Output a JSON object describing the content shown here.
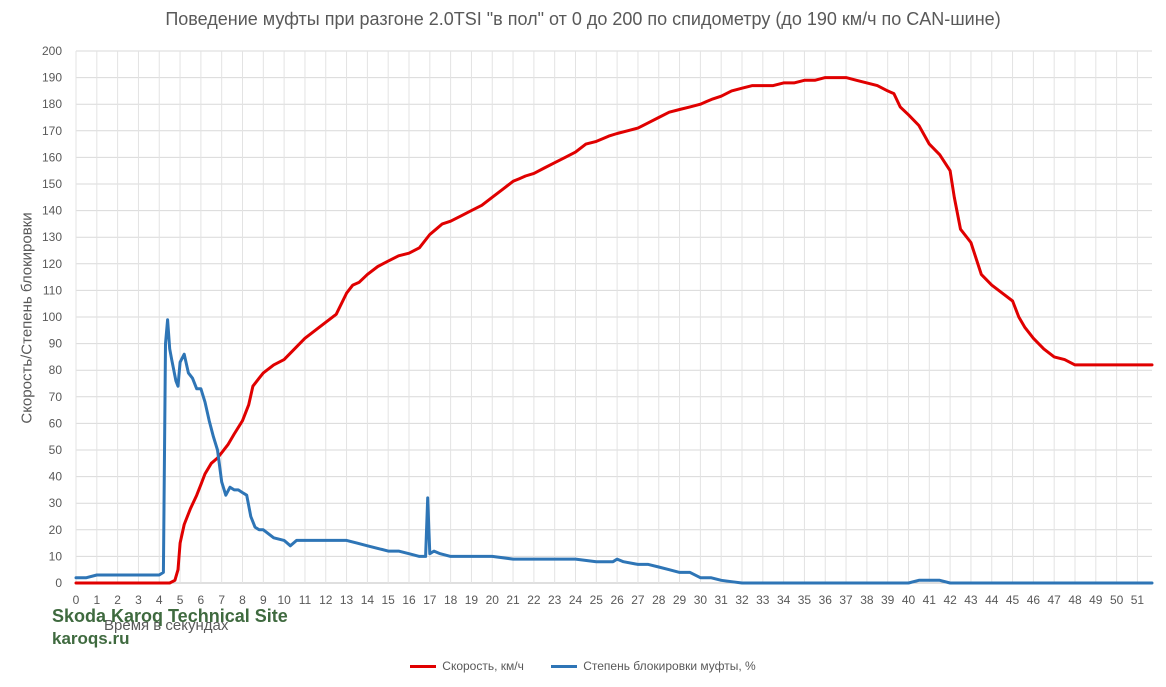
{
  "chart_data": {
    "type": "line",
    "title": "Поведение муфты при разгоне 2.0TSI \"в пол\" от 0 до 200 по спидометру (до 190 км/ч по CAN-шине)",
    "xlabel": "Время в секундах",
    "ylabel": "Скорость/Степень блокировки",
    "xlim": [
      0,
      51.7
    ],
    "ylim": [
      0,
      200
    ],
    "x_ticks": [
      0,
      1,
      2,
      3,
      4,
      5,
      6,
      7,
      8,
      9,
      10,
      11,
      12,
      13,
      14,
      15,
      16,
      17,
      18,
      19,
      20,
      21,
      22,
      23,
      24,
      25,
      26,
      27,
      28,
      29,
      30,
      31,
      32,
      33,
      34,
      35,
      36,
      37,
      38,
      39,
      40,
      41,
      42,
      43,
      44,
      45,
      46,
      47,
      48,
      49,
      50,
      51
    ],
    "y_ticks": [
      0,
      10,
      20,
      30,
      40,
      50,
      60,
      70,
      80,
      90,
      100,
      110,
      120,
      130,
      140,
      150,
      160,
      170,
      180,
      190,
      200
    ],
    "grid": true,
    "legend_position": "bottom",
    "series": [
      {
        "name": "Скорость, км/ч",
        "color": "#e00000",
        "x": [
          0,
          1,
          2,
          3,
          4,
          4.5,
          4.75,
          4.9,
          5.0,
          5.2,
          5.5,
          5.8,
          6.0,
          6.2,
          6.5,
          6.8,
          7.0,
          7.3,
          7.6,
          8.0,
          8.3,
          8.5,
          8.8,
          9.0,
          9.5,
          10,
          10.5,
          11,
          11.5,
          12,
          12.5,
          13,
          13.3,
          13.6,
          14,
          14.5,
          15,
          15.5,
          16,
          16.5,
          17,
          17.3,
          17.6,
          18,
          18.5,
          19,
          19.5,
          20,
          20.5,
          21,
          21.3,
          21.6,
          22,
          22.5,
          23,
          23.5,
          24,
          24.5,
          25,
          25.3,
          25.6,
          26,
          26.5,
          27,
          27.5,
          28,
          28.5,
          29,
          29.5,
          30,
          30.3,
          30.6,
          31,
          31.5,
          32,
          32.5,
          33,
          33.5,
          34,
          34.5,
          35,
          35.5,
          36,
          36.5,
          37,
          37.5,
          38,
          38.5,
          39,
          39.3,
          39.6,
          40,
          40.5,
          41,
          41.5,
          42,
          42.2,
          42.5,
          43,
          43.5,
          44,
          44.5,
          45,
          45.3,
          45.6,
          46,
          46.5,
          47,
          47.5,
          48,
          48.5,
          49,
          49.5,
          50,
          50.5,
          51,
          51.7
        ],
        "values": [
          0,
          0,
          0,
          0,
          0,
          0,
          1,
          5,
          15,
          22,
          28,
          33,
          37,
          41,
          45,
          47,
          49,
          52,
          56,
          61,
          67,
          74,
          77,
          79,
          82,
          84,
          88,
          92,
          95,
          98,
          101,
          109,
          112,
          113,
          116,
          119,
          121,
          123,
          124,
          126,
          131,
          133,
          135,
          136,
          138,
          140,
          142,
          145,
          148,
          151,
          152,
          153,
          154,
          156,
          158,
          160,
          162,
          165,
          166,
          167,
          168,
          169,
          170,
          171,
          173,
          175,
          177,
          178,
          179,
          180,
          181,
          182,
          183,
          185,
          186,
          187,
          187,
          187,
          188,
          188,
          189,
          189,
          190,
          190,
          190,
          189,
          188,
          187,
          185,
          184,
          179,
          176,
          172,
          165,
          161,
          155,
          145,
          133,
          128,
          116,
          112,
          109,
          106,
          100,
          96,
          92,
          88,
          85,
          84,
          82,
          82,
          82,
          82,
          82,
          82,
          82,
          82
        ],
        "_note": "x-values beyond value count are ignored"
      },
      {
        "name": "Степень блокировки муфты, %",
        "color": "#2e75b6",
        "x": [
          0,
          0.5,
          1,
          1.5,
          2,
          2.5,
          3,
          3.5,
          4,
          4.2,
          4.3,
          4.4,
          4.5,
          4.6,
          4.8,
          4.9,
          5.0,
          5.2,
          5.4,
          5.6,
          5.8,
          6.0,
          6.2,
          6.4,
          6.6,
          6.8,
          7.0,
          7.2,
          7.4,
          7.6,
          7.8,
          8.0,
          8.2,
          8.4,
          8.6,
          8.8,
          9.0,
          9.5,
          10,
          10.3,
          10.6,
          11,
          11.5,
          12,
          12.5,
          13,
          13.5,
          14,
          14.5,
          15,
          15.5,
          16,
          16.5,
          16.8,
          16.9,
          17.0,
          17.2,
          17.5,
          18,
          19,
          20,
          21,
          22,
          23,
          24,
          25,
          25.8,
          26,
          26.3,
          27,
          27.5,
          28,
          28.5,
          29,
          29.5,
          30,
          30.5,
          31,
          31.5,
          32,
          33,
          34,
          35,
          36,
          37,
          38,
          39,
          40,
          40.5,
          41,
          41.5,
          42,
          43,
          44,
          45,
          46,
          47,
          48,
          49,
          50,
          51,
          51.7
        ],
        "values": [
          2,
          2,
          3,
          3,
          3,
          3,
          3,
          3,
          3,
          4,
          90,
          99,
          88,
          84,
          76,
          74,
          83,
          86,
          79,
          77,
          73,
          73,
          68,
          61,
          55,
          50,
          38,
          33,
          36,
          35,
          35,
          34,
          33,
          25,
          21,
          20,
          20,
          17,
          16,
          14,
          16,
          16,
          16,
          16,
          16,
          16,
          15,
          14,
          13,
          12,
          12,
          11,
          10,
          10,
          32,
          11,
          12,
          11,
          10,
          10,
          10,
          9,
          9,
          9,
          9,
          8,
          8,
          9,
          8,
          7,
          7,
          6,
          5,
          4,
          4,
          2,
          2,
          1,
          0.5,
          0,
          0,
          0,
          0,
          0,
          0,
          0,
          0,
          0,
          1,
          1,
          1,
          0,
          0,
          0,
          0,
          0,
          0,
          0,
          0,
          0,
          0,
          0
        ]
      }
    ]
  },
  "watermark": {
    "line1": "Skoda Karoq Technical Site",
    "line2": "karoqs.ru"
  }
}
